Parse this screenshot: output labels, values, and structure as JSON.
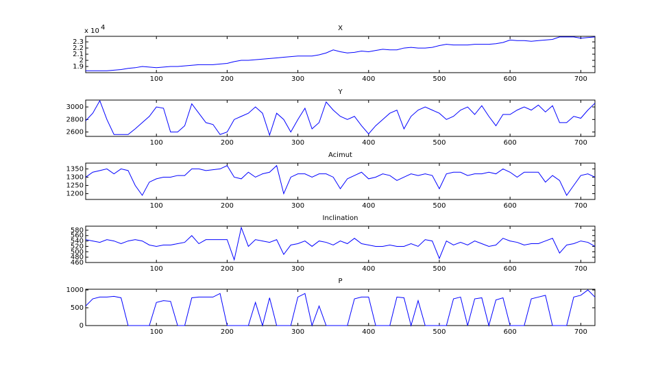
{
  "chart_data": [
    {
      "type": "line",
      "title": "X",
      "y_scale_label": "x 10",
      "y_scale_exponent": "4",
      "x": [
        0,
        10,
        20,
        30,
        40,
        50,
        60,
        70,
        80,
        90,
        100,
        110,
        120,
        130,
        140,
        150,
        160,
        170,
        180,
        190,
        200,
        210,
        220,
        230,
        240,
        250,
        260,
        270,
        280,
        290,
        300,
        310,
        320,
        330,
        340,
        350,
        360,
        370,
        380,
        390,
        400,
        410,
        420,
        430,
        440,
        450,
        460,
        470,
        480,
        490,
        500,
        510,
        520,
        530,
        540,
        550,
        560,
        570,
        580,
        590,
        600,
        610,
        620,
        630,
        640,
        650,
        660,
        670,
        680,
        690,
        700,
        710,
        720
      ],
      "series": [
        {
          "color": "#0000ff",
          "values": [
            1.83,
            1.83,
            1.83,
            1.83,
            1.84,
            1.85,
            1.87,
            1.88,
            1.9,
            1.89,
            1.88,
            1.89,
            1.9,
            1.9,
            1.91,
            1.92,
            1.93,
            1.93,
            1.93,
            1.94,
            1.95,
            1.98,
            2.0,
            2.0,
            2.01,
            2.02,
            2.03,
            2.04,
            2.05,
            2.06,
            2.07,
            2.07,
            2.07,
            2.09,
            2.12,
            2.17,
            2.14,
            2.12,
            2.13,
            2.15,
            2.14,
            2.16,
            2.18,
            2.17,
            2.17,
            2.2,
            2.21,
            2.2,
            2.2,
            2.21,
            2.24,
            2.26,
            2.25,
            2.25,
            2.25,
            2.26,
            2.26,
            2.26,
            2.27,
            2.29,
            2.33,
            2.32,
            2.32,
            2.31,
            2.32,
            2.33,
            2.34,
            2.38,
            2.38,
            2.38,
            2.36,
            2.37,
            2.38
          ]
        }
      ],
      "xlim": [
        0,
        720
      ],
      "xticks": [
        100,
        200,
        300,
        400,
        500,
        600,
        700
      ],
      "ylim": [
        1.8,
        2.39
      ],
      "yticks": [
        1.9,
        2,
        2.1,
        2.2,
        2.3
      ]
    },
    {
      "type": "line",
      "title": "Y",
      "x": [
        0,
        10,
        20,
        30,
        40,
        50,
        60,
        70,
        80,
        90,
        100,
        110,
        120,
        130,
        140,
        150,
        160,
        170,
        180,
        190,
        200,
        210,
        220,
        230,
        240,
        250,
        260,
        270,
        280,
        290,
        300,
        310,
        320,
        330,
        340,
        350,
        360,
        370,
        380,
        390,
        400,
        410,
        420,
        430,
        440,
        450,
        460,
        470,
        480,
        490,
        500,
        510,
        520,
        530,
        540,
        550,
        560,
        570,
        580,
        590,
        600,
        610,
        620,
        630,
        640,
        650,
        660,
        670,
        680,
        690,
        700,
        710,
        720
      ],
      "series": [
        {
          "color": "#0000ff",
          "values": [
            2780,
            2900,
            3100,
            2800,
            2560,
            2560,
            2560,
            2650,
            2750,
            2850,
            3000,
            2980,
            2600,
            2600,
            2700,
            3050,
            2900,
            2750,
            2720,
            2560,
            2600,
            2800,
            2850,
            2900,
            3000,
            2900,
            2550,
            2900,
            2800,
            2600,
            2800,
            2980,
            2650,
            2750,
            3080,
            2950,
            2850,
            2800,
            2850,
            2700,
            2570,
            2700,
            2800,
            2900,
            2950,
            2650,
            2850,
            2950,
            3000,
            2950,
            2900,
            2800,
            2850,
            2950,
            3000,
            2880,
            3020,
            2850,
            2700,
            2880,
            2880,
            2950,
            3000,
            2950,
            3030,
            2920,
            3020,
            2750,
            2750,
            2850,
            2820,
            2950,
            3060
          ]
        }
      ],
      "xlim": [
        0,
        720
      ],
      "xticks": [
        100,
        200,
        300,
        400,
        500,
        600,
        700
      ],
      "ylim": [
        2530,
        3110
      ],
      "yticks": [
        2600,
        2800,
        3000
      ]
    },
    {
      "type": "line",
      "title": "Acimut",
      "x": [
        0,
        10,
        20,
        30,
        40,
        50,
        60,
        70,
        80,
        90,
        100,
        110,
        120,
        130,
        140,
        150,
        160,
        170,
        180,
        190,
        200,
        210,
        220,
        230,
        240,
        250,
        260,
        270,
        280,
        290,
        300,
        310,
        320,
        330,
        340,
        350,
        360,
        370,
        380,
        390,
        400,
        410,
        420,
        430,
        440,
        450,
        460,
        470,
        480,
        490,
        500,
        510,
        520,
        530,
        540,
        550,
        560,
        570,
        580,
        590,
        600,
        610,
        620,
        630,
        640,
        650,
        660,
        670,
        680,
        690,
        700,
        710,
        720
      ],
      "series": [
        {
          "color": "#0000ff",
          "values": [
            1300,
            1330,
            1340,
            1350,
            1320,
            1350,
            1340,
            1250,
            1190,
            1270,
            1290,
            1300,
            1300,
            1310,
            1310,
            1350,
            1350,
            1340,
            1345,
            1350,
            1370,
            1300,
            1290,
            1330,
            1300,
            1320,
            1330,
            1370,
            1200,
            1300,
            1320,
            1320,
            1300,
            1320,
            1320,
            1300,
            1230,
            1290,
            1310,
            1330,
            1290,
            1300,
            1320,
            1310,
            1280,
            1300,
            1320,
            1310,
            1320,
            1310,
            1230,
            1320,
            1330,
            1330,
            1310,
            1320,
            1320,
            1330,
            1320,
            1350,
            1330,
            1300,
            1330,
            1330,
            1330,
            1270,
            1310,
            1280,
            1190,
            1250,
            1310,
            1320,
            1300
          ]
        }
      ],
      "xlim": [
        0,
        720
      ],
      "xticks": [
        100,
        200,
        300,
        400,
        500,
        600,
        700
      ],
      "ylim": [
        1165,
        1385
      ],
      "yticks": [
        1200,
        1250,
        1300,
        1350
      ]
    },
    {
      "type": "line",
      "title": "Inclination",
      "x": [
        0,
        10,
        20,
        30,
        40,
        50,
        60,
        70,
        80,
        90,
        100,
        110,
        120,
        130,
        140,
        150,
        160,
        170,
        180,
        190,
        200,
        210,
        220,
        230,
        240,
        250,
        260,
        270,
        280,
        290,
        300,
        310,
        320,
        330,
        340,
        350,
        360,
        370,
        380,
        390,
        400,
        410,
        420,
        430,
        440,
        450,
        460,
        470,
        480,
        490,
        500,
        510,
        520,
        530,
        540,
        550,
        560,
        570,
        580,
        590,
        600,
        610,
        620,
        630,
        640,
        650,
        660,
        670,
        680,
        690,
        700,
        710,
        720
      ],
      "series": [
        {
          "color": "#0000ff",
          "values": [
            545,
            540,
            535,
            545,
            540,
            530,
            540,
            545,
            540,
            525,
            520,
            525,
            525,
            530,
            535,
            560,
            530,
            545,
            545,
            545,
            545,
            470,
            590,
            520,
            545,
            540,
            535,
            545,
            490,
            525,
            530,
            540,
            520,
            540,
            535,
            525,
            540,
            530,
            550,
            530,
            525,
            520,
            520,
            525,
            520,
            520,
            530,
            520,
            545,
            540,
            475,
            540,
            525,
            535,
            525,
            540,
            530,
            520,
            525,
            550,
            540,
            535,
            525,
            530,
            530,
            540,
            550,
            495,
            525,
            530,
            540,
            535,
            520
          ]
        }
      ],
      "xlim": [
        0,
        720
      ],
      "xticks": [
        100,
        200,
        300,
        400,
        500,
        600,
        700
      ],
      "ylim": [
        460,
        595
      ],
      "yticks": [
        460,
        480,
        500,
        520,
        540,
        560,
        580
      ]
    },
    {
      "type": "line",
      "title": "P",
      "x": [
        0,
        10,
        20,
        30,
        40,
        50,
        60,
        70,
        80,
        90,
        100,
        110,
        120,
        130,
        140,
        150,
        160,
        170,
        180,
        190,
        200,
        210,
        220,
        230,
        240,
        250,
        260,
        270,
        280,
        290,
        300,
        310,
        320,
        330,
        340,
        350,
        360,
        370,
        380,
        390,
        400,
        410,
        420,
        430,
        440,
        450,
        460,
        470,
        480,
        490,
        500,
        510,
        520,
        530,
        540,
        550,
        560,
        570,
        580,
        590,
        600,
        610,
        620,
        630,
        640,
        650,
        660,
        670,
        680,
        690,
        700,
        710,
        720
      ],
      "series": [
        {
          "color": "#0000ff",
          "values": [
            550,
            750,
            800,
            800,
            820,
            780,
            0,
            0,
            0,
            0,
            650,
            700,
            680,
            0,
            0,
            780,
            800,
            800,
            800,
            900,
            0,
            0,
            0,
            0,
            650,
            0,
            780,
            0,
            0,
            0,
            800,
            900,
            0,
            550,
            0,
            0,
            0,
            0,
            750,
            800,
            800,
            0,
            0,
            0,
            800,
            780,
            0,
            700,
            0,
            0,
            0,
            0,
            750,
            800,
            0,
            750,
            780,
            0,
            720,
            780,
            0,
            0,
            0,
            750,
            800,
            850,
            0,
            0,
            0,
            800,
            850,
            1000,
            800
          ]
        }
      ],
      "xlim": [
        0,
        720
      ],
      "xticks": [
        100,
        200,
        300,
        400,
        500,
        600,
        700
      ],
      "ylim": [
        0,
        1020
      ],
      "yticks": [
        0,
        500,
        1000
      ]
    }
  ]
}
